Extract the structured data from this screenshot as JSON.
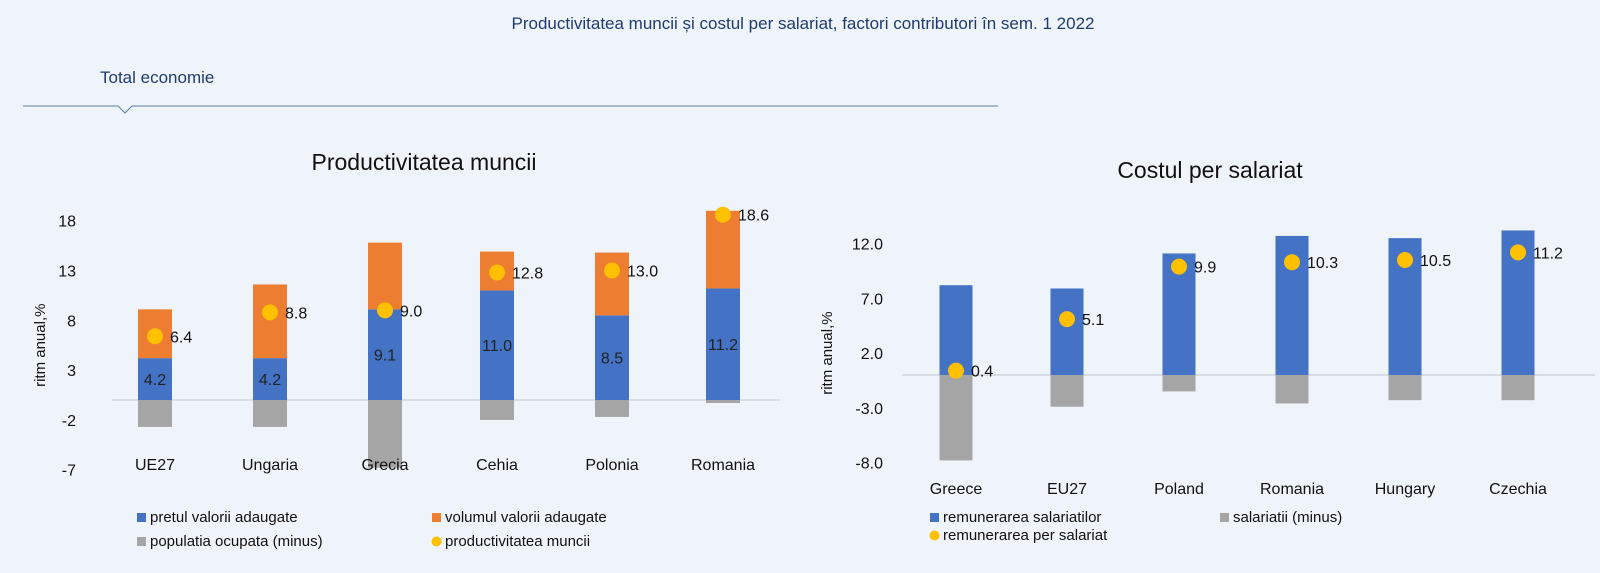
{
  "header": {
    "title": "Productivitatea muncii și costul per salariat, factori contributori în sem. 1 2022",
    "tab": "Total economie"
  },
  "colors": {
    "blue": "#4472c4",
    "orange": "#ed7d31",
    "gray": "#a5a5a5",
    "yellow": "#ffc000",
    "title": "#1f3c6e"
  },
  "chart_data": [
    {
      "type": "bar",
      "stacked": true,
      "title": "Productivitatea muncii",
      "ylabel": "ritm anual,%",
      "ylim": [
        -7,
        18
      ],
      "yticks": [
        "18",
        "13",
        "8",
        "3",
        "-2",
        "-7"
      ],
      "ytick_values": [
        18,
        13,
        8,
        3,
        -2,
        -7
      ],
      "categories": [
        "UE27",
        "Ungaria",
        "Grecia",
        "Cehia",
        "Polonia",
        "Romania"
      ],
      "series": [
        {
          "name": "pretul valorii adaugate",
          "kind": "bar",
          "color": "blue",
          "values": [
            4.2,
            4.2,
            9.1,
            11.0,
            8.5,
            11.2
          ],
          "labels": [
            "4.2",
            "4.2",
            "9.1",
            "11.0",
            "8.5",
            "11.2"
          ]
        },
        {
          "name": "volumul valorii adaugate",
          "kind": "bar",
          "color": "orange",
          "values": [
            4.9,
            7.4,
            6.7,
            3.9,
            6.3,
            7.8
          ]
        },
        {
          "name": "populatia ocupata (minus)",
          "kind": "bar",
          "color": "gray",
          "values": [
            -2.7,
            -2.7,
            -6.8,
            -2.0,
            -1.7,
            -0.3
          ]
        },
        {
          "name": "productivitatea muncii",
          "kind": "point",
          "color": "yellow",
          "values": [
            6.4,
            8.8,
            9.0,
            12.8,
            13.0,
            18.6
          ],
          "labels": [
            "6.4",
            "8.8",
            "9.0",
            "12.8",
            "13.0",
            "18.6"
          ]
        }
      ],
      "grid": false,
      "legend": "bottom"
    },
    {
      "type": "bar",
      "stacked": true,
      "title": "Costul per salariat",
      "ylabel": "ritm anual,%",
      "ylim": [
        -8,
        12
      ],
      "yticks": [
        "12.0",
        "7.0",
        "2.0",
        "-3.0",
        "-8.0"
      ],
      "ytick_values": [
        12,
        7,
        2,
        -3,
        -8
      ],
      "categories": [
        "Greece",
        "EU27",
        "Poland",
        "Romania",
        "Hungary",
        "Czechia"
      ],
      "series": [
        {
          "name": "remunerarea salariatilor",
          "kind": "bar",
          "color": "blue",
          "values": [
            8.2,
            7.9,
            11.1,
            12.7,
            12.5,
            13.2
          ]
        },
        {
          "name": "salariatii (minus)",
          "kind": "bar",
          "color": "gray",
          "values": [
            -7.8,
            -2.9,
            -1.5,
            -2.6,
            -2.3,
            -2.3
          ]
        },
        {
          "name": "remunerarea per salariat",
          "kind": "point",
          "color": "yellow",
          "values": [
            0.4,
            5.1,
            9.9,
            10.3,
            10.5,
            11.2
          ],
          "labels": [
            "0.4",
            "5.1",
            "9.9",
            "10.3",
            "10.5",
            "11.2"
          ]
        }
      ],
      "grid": false,
      "legend": "bottom"
    }
  ]
}
